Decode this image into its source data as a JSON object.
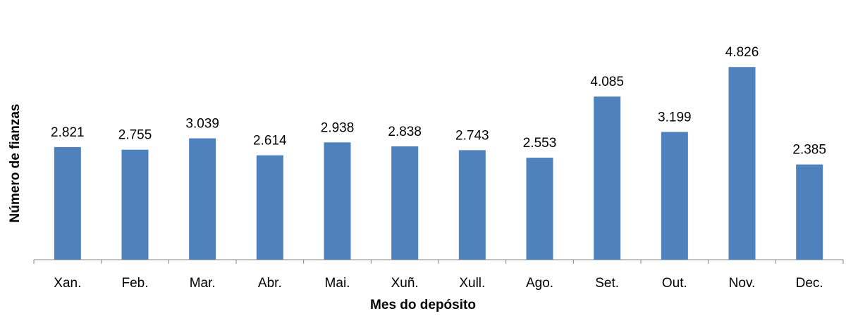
{
  "chart_data": {
    "type": "bar",
    "title": "",
    "xlabel": "Mes do depósito",
    "ylabel": "Número de fianzas",
    "categories": [
      "Xan.",
      "Feb.",
      "Mar.",
      "Abr.",
      "Mai.",
      "Xuñ.",
      "Xull.",
      "Ago.",
      "Set.",
      "Out.",
      "Nov.",
      "Dec."
    ],
    "values": [
      2821,
      2755,
      3039,
      2614,
      2938,
      2838,
      2743,
      2553,
      4085,
      3199,
      4826,
      2385
    ],
    "data_labels": [
      "2.821",
      "2.755",
      "3.039",
      "2.614",
      "2.938",
      "2.838",
      "2.743",
      "2.553",
      "4.085",
      "3.199",
      "4.826",
      "2.385"
    ],
    "ylim": [
      0,
      5000
    ],
    "grid": false,
    "legend": "none",
    "bar_color": "#4F81BD"
  }
}
